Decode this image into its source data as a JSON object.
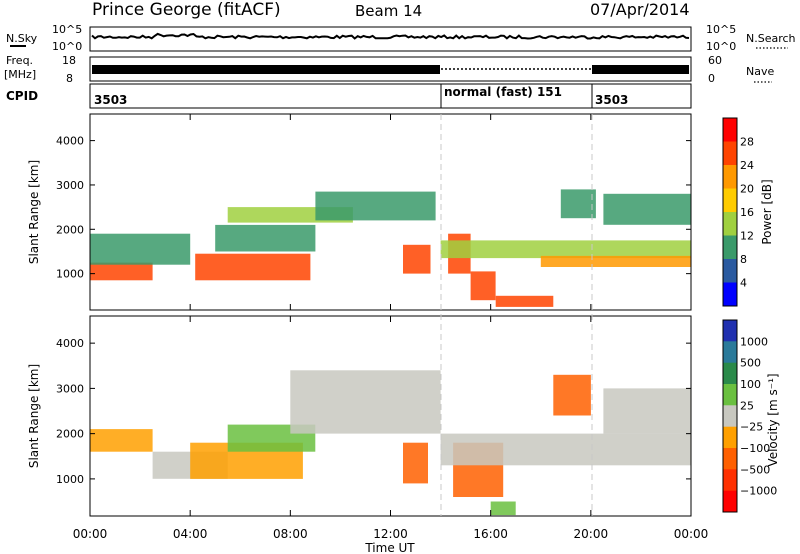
{
  "header": {
    "station": "Prince George (fitACF)",
    "beam": "Beam 14",
    "date": "07/Apr/2014"
  },
  "status_panels": {
    "nsky_label": "N.Sky",
    "nsky_ticks": [
      "10^5",
      "10^0"
    ],
    "nsearch_label": "N.Search",
    "nsearch_ticks": [
      "10^5",
      "10^0"
    ],
    "freq_label": "Freq.",
    "freq_unit": "[MHz]",
    "freq_ticks": [
      "18",
      "8"
    ],
    "nave_label": "Nave",
    "nave_ticks": [
      "60",
      "0"
    ],
    "cpid_label": "CPID",
    "cpid_segments": [
      {
        "start_h": 0,
        "end_h": 14,
        "text": "3503"
      },
      {
        "start_h": 14,
        "end_h": 20,
        "text": "normal (fast) 151"
      },
      {
        "start_h": 20,
        "end_h": 24,
        "text": "3503"
      }
    ]
  },
  "chart_data": [
    {
      "type": "heatmap",
      "name": "power",
      "ylabel": "Slant Range [km]",
      "yticks": [
        1000,
        2000,
        3000,
        4000
      ],
      "ylim": [
        180,
        4600
      ],
      "xlim": [
        0,
        24
      ],
      "colorbar": {
        "label": "Power [dB]",
        "ticks": [
          "28",
          "24",
          "20",
          "16",
          "12",
          "8",
          "4"
        ],
        "colors": [
          "#ff0000",
          "#ff4400",
          "#ff9900",
          "#ffcc00",
          "#a0d040",
          "#3a9a6a",
          "#2a5aa0",
          "#0000ff"
        ]
      },
      "echo_regions": [
        {
          "t0": 0.0,
          "t1": 2.5,
          "r0": 850,
          "r1": 1250,
          "level": 24
        },
        {
          "t0": 0.0,
          "t1": 4.0,
          "r0": 1200,
          "r1": 1900,
          "level": 9
        },
        {
          "t0": 4.2,
          "t1": 8.8,
          "r0": 850,
          "r1": 1450,
          "level": 26
        },
        {
          "t0": 5.0,
          "t1": 9.0,
          "r0": 1500,
          "r1": 2100,
          "level": 8
        },
        {
          "t0": 5.5,
          "t1": 10.5,
          "r0": 2150,
          "r1": 2500,
          "level": 13
        },
        {
          "t0": 9.0,
          "t1": 13.8,
          "r0": 2200,
          "r1": 2850,
          "level": 8
        },
        {
          "t0": 12.5,
          "t1": 13.6,
          "r0": 1000,
          "r1": 1650,
          "level": 24
        },
        {
          "t0": 14.3,
          "t1": 15.2,
          "r0": 1000,
          "r1": 1900,
          "level": 26
        },
        {
          "t0": 15.2,
          "t1": 16.2,
          "r0": 400,
          "r1": 1050,
          "level": 24
        },
        {
          "t0": 16.2,
          "t1": 18.5,
          "r0": 250,
          "r1": 500,
          "level": 26
        },
        {
          "t0": 14.0,
          "t1": 24.0,
          "r0": 1350,
          "r1": 1750,
          "level": 13
        },
        {
          "t0": 18.0,
          "t1": 24.0,
          "r0": 1150,
          "r1": 1400,
          "level": 22
        },
        {
          "t0": 18.8,
          "t1": 20.2,
          "r0": 2250,
          "r1": 2900,
          "level": 9
        },
        {
          "t0": 20.5,
          "t1": 24.0,
          "r0": 2100,
          "r1": 2800,
          "level": 10
        }
      ]
    },
    {
      "type": "heatmap",
      "name": "velocity",
      "ylabel": "Slant Range [km]",
      "yticks": [
        1000,
        2000,
        3000,
        4000
      ],
      "ylim": [
        180,
        4600
      ],
      "xlim": [
        0,
        24
      ],
      "xlabel": "Time UT",
      "xticks": [
        "00:00",
        "04:00",
        "08:00",
        "12:00",
        "16:00",
        "20:00",
        "00:00"
      ],
      "colorbar": {
        "label": "Velocity [m s⁻¹]",
        "ticks": [
          "1000",
          "500",
          "100",
          "25",
          "−25",
          "−100",
          "−500",
          "−1000"
        ],
        "colors": [
          "#2030b0",
          "#2a7a9a",
          "#2a8a4a",
          "#6ac040",
          "#c8c8c0",
          "#ffa000",
          "#ff6000",
          "#ff3000",
          "#ff0000"
        ]
      },
      "echo_regions": [
        {
          "t0": 0.0,
          "t1": 2.5,
          "r0": 1600,
          "r1": 2100,
          "level": -100
        },
        {
          "t0": 2.5,
          "t1": 5.5,
          "r0": 1000,
          "r1": 1600,
          "level": 0
        },
        {
          "t0": 4.0,
          "t1": 8.5,
          "r0": 1000,
          "r1": 1800,
          "level": -100
        },
        {
          "t0": 5.5,
          "t1": 9.0,
          "r0": 1600,
          "r1": 2200,
          "level": 50
        },
        {
          "t0": 8.0,
          "t1": 14.0,
          "r0": 2000,
          "r1": 3400,
          "level": 0
        },
        {
          "t0": 12.5,
          "t1": 13.5,
          "r0": 900,
          "r1": 1800,
          "level": -300
        },
        {
          "t0": 14.5,
          "t1": 16.5,
          "r0": 600,
          "r1": 1800,
          "level": -300
        },
        {
          "t0": 16.0,
          "t1": 17.0,
          "r0": 200,
          "r1": 500,
          "level": 50
        },
        {
          "t0": 14.0,
          "t1": 24.0,
          "r0": 1300,
          "r1": 2000,
          "level": 0
        },
        {
          "t0": 18.5,
          "t1": 20.0,
          "r0": 2400,
          "r1": 3300,
          "level": -300
        },
        {
          "t0": 20.5,
          "t1": 24.0,
          "r0": 2000,
          "r1": 3000,
          "level": 0
        }
      ]
    }
  ]
}
